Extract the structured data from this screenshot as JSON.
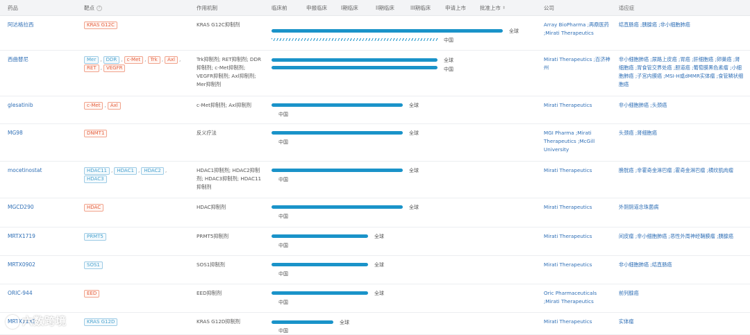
{
  "header": {
    "drug": "药品",
    "target": "靶点",
    "mechanism": "作用机制",
    "phases": [
      "临床前",
      "申报临床",
      "I期临床",
      "II期临床",
      "III期临床",
      "申请上市",
      "批准上市"
    ],
    "company": "公司",
    "indication": "适应症"
  },
  "rows": [
    {
      "drug": "阿达格拉西",
      "targets": [
        {
          "t": "KRAS G12C",
          "c": "red"
        }
      ],
      "mechanism": "KRAS G12C抑制剂",
      "bar1_label": "全球",
      "bar2_label": "中国",
      "company": "Array BioPharma ;再鼎医药 ;Mirati Therapeutics",
      "indication": "结直肠癌 ;胰腺癌 ;非小细胞肺癌"
    },
    {
      "drug": "西曲替尼",
      "targets": [
        {
          "t": "Mer",
          "c": "blue"
        },
        {
          "t": "DDR",
          "c": "blue"
        },
        {
          "t": "c-Met",
          "c": "red"
        },
        {
          "t": "Trk",
          "c": "red"
        },
        {
          "t": "Axl",
          "c": "red"
        },
        {
          "t": "RET",
          "c": "red"
        },
        {
          "t": "VEGFR",
          "c": "red"
        }
      ],
      "mechanism": "Trk抑制剂; RET抑制剂; DDR抑制剂; c-Met抑制剂; VEGFR抑制剂; Axl抑制剂; Mer抑制剂",
      "bar1_label": "全球",
      "bar2_label": "中国",
      "company": "Mirati Therapeutics ;百济神州",
      "indication": "非小细胞肺癌 ;尿路上皮癌 ;胃癌 ;肝细胞癌 ;卵巢癌 ;肾细胞癌 ;胃食管交界处癌 ;胆道癌 ;葡萄膜黑色素瘤 ;小细胞肺癌 ;子宫内膜癌 ;MSI-H或dMMR实体瘤 ;食管鳞状细胞癌"
    },
    {
      "drug": "glesatinib",
      "targets": [
        {
          "t": "c-Met",
          "c": "red"
        },
        {
          "t": "Axl",
          "c": "red"
        }
      ],
      "mechanism": "c-Met抑制剂; Axl抑制剂",
      "bar1_label": "全球",
      "bar2_label": "中国",
      "company": "Mirati Therapeutics",
      "indication": "非小细胞肺癌 ;头颈癌"
    },
    {
      "drug": "MG98",
      "targets": [
        {
          "t": "DNMT1",
          "c": "red"
        }
      ],
      "mechanism": "反义疗法",
      "bar1_label": "全球",
      "bar2_label": "中国",
      "company": "MGI Pharma ;Mirati Therapeutics ;McGill University",
      "indication": "头颈癌 ;肾细胞癌"
    },
    {
      "drug": "mocetinostat",
      "targets": [
        {
          "t": "HDAC11",
          "c": "blue"
        },
        {
          "t": "HDAC1",
          "c": "blue"
        },
        {
          "t": "HDAC2",
          "c": "blue"
        },
        {
          "t": "HDAC3",
          "c": "blue"
        }
      ],
      "mechanism": "HDAC1抑制剂; HDAC2抑制剂; HDAC3抑制剂; HDAC11抑制剂",
      "bar1_label": "全球",
      "bar2_label": "中国",
      "company": "Mirati Therapeutics",
      "indication": "膀胱癌 ;非霍奇金淋巴瘤 ;霍奇金淋巴瘤 ;横纹肌肉瘤"
    },
    {
      "drug": "MGCD290",
      "targets": [
        {
          "t": "HDAC",
          "c": "red"
        }
      ],
      "mechanism": "HDAC抑制剂",
      "bar1_label": "全球",
      "bar2_label": "中国",
      "company": "Mirati Therapeutics",
      "indication": "外阴阴道念珠菌病"
    },
    {
      "drug": "MRTX1719",
      "targets": [
        {
          "t": "PRMT5",
          "c": "blue"
        }
      ],
      "mechanism": "PRMT5抑制剂",
      "bar1_label": "全球",
      "bar2_label": "中国",
      "company": "Mirati Therapeutics",
      "indication": "间皮瘤 ;非小细胞肺癌 ;恶性外周神经鞘膜瘤 ;胰腺癌"
    },
    {
      "drug": "MRTX0902",
      "targets": [
        {
          "t": "SOS1",
          "c": "blue"
        }
      ],
      "mechanism": "SOS1抑制剂",
      "bar1_label": "全球",
      "bar2_label": "中国",
      "company": "Mirati Therapeutics",
      "indication": "非小细胞肺癌 ;结直肠癌"
    },
    {
      "drug": "ORIC-944",
      "targets": [
        {
          "t": "EED",
          "c": "red"
        }
      ],
      "mechanism": "EED抑制剂",
      "bar1_label": "全球",
      "bar2_label": "中国",
      "company": "Oric Pharmaceuticals ;Mirati Therapeutics",
      "indication": "前列腺癌"
    },
    {
      "drug": "MRTX1133",
      "targets": [
        {
          "t": "KRAS G12D",
          "c": "blue"
        }
      ],
      "mechanism": "KRAS G12D抑制剂",
      "bar1_label": "全球",
      "bar2_label": "中国",
      "company": "Mirati Therapeutics",
      "indication": "实体瘤"
    }
  ],
  "watermark": "六数跨境"
}
